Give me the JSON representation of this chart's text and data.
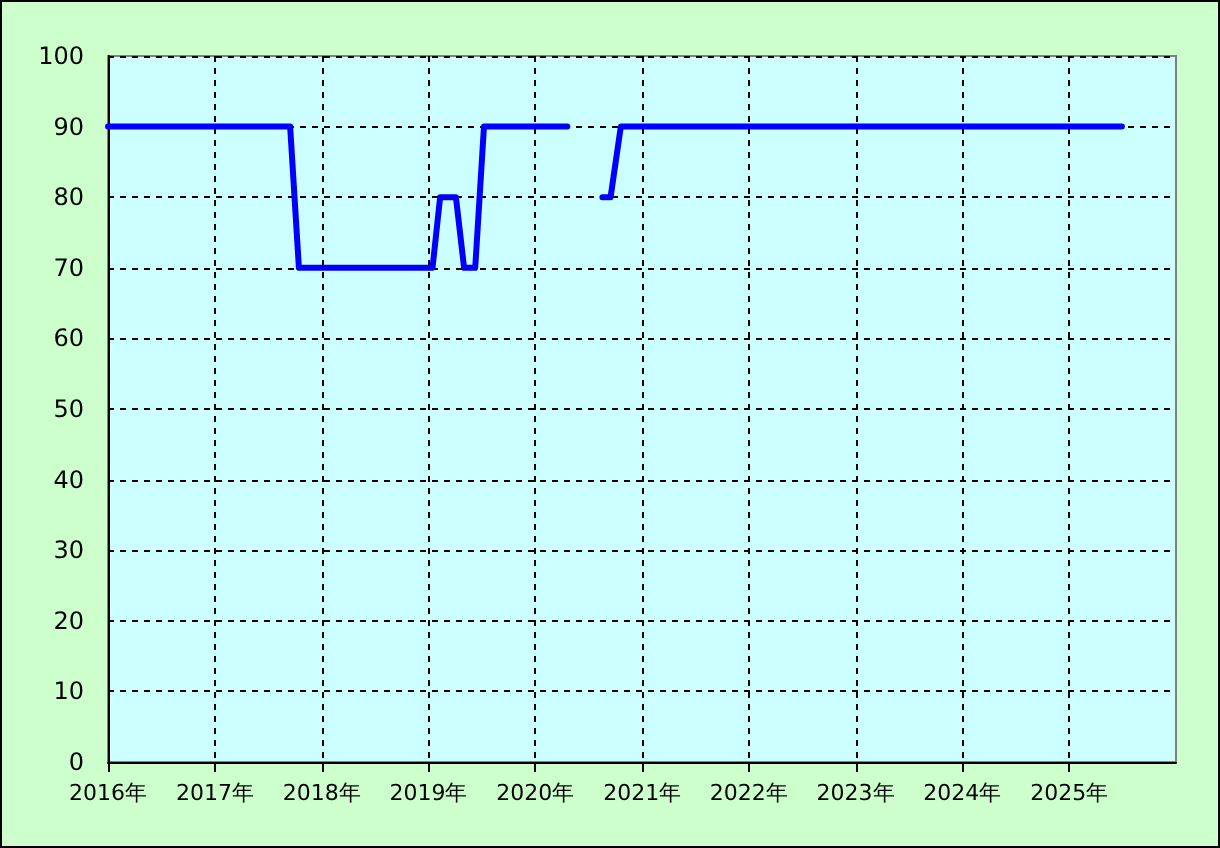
{
  "chart_data": {
    "type": "line",
    "x": [
      "2016-01-01",
      "2017-09-15",
      "2017-10-15",
      "2019-01-15",
      "2019-02-10",
      "2019-04-05",
      "2019-05-03",
      "2019-06-10",
      "2019-07-10",
      "2020-04-20",
      "2020-06-01",
      "2020-08-18",
      "2020-09-15",
      "2020-10-20",
      "2025-06-30"
    ],
    "series": [
      {
        "color": "#0000ff",
        "values": [
          90,
          90,
          70,
          70,
          80,
          80,
          70,
          70,
          90,
          90,
          null,
          80,
          80,
          90,
          90
        ]
      }
    ],
    "xlim": [
      "2016-01-01",
      "2026-01-01"
    ],
    "xticks": [
      {
        "value": "2016",
        "label": "2016年"
      },
      {
        "value": "2017",
        "label": "2017年"
      },
      {
        "value": "2018",
        "label": "2018年"
      },
      {
        "value": "2019",
        "label": "2019年"
      },
      {
        "value": "2020",
        "label": "2020年"
      },
      {
        "value": "2021",
        "label": "2021年"
      },
      {
        "value": "2022",
        "label": "2022年"
      },
      {
        "value": "2023",
        "label": "2023年"
      },
      {
        "value": "2024",
        "label": "2024年"
      },
      {
        "value": "2025",
        "label": "2025年"
      }
    ],
    "ylim": [
      0,
      100
    ],
    "yticks": [
      0,
      10,
      20,
      30,
      40,
      50,
      60,
      70,
      80,
      90,
      100
    ],
    "grid": true,
    "marker": "none",
    "line_style": "solid"
  }
}
